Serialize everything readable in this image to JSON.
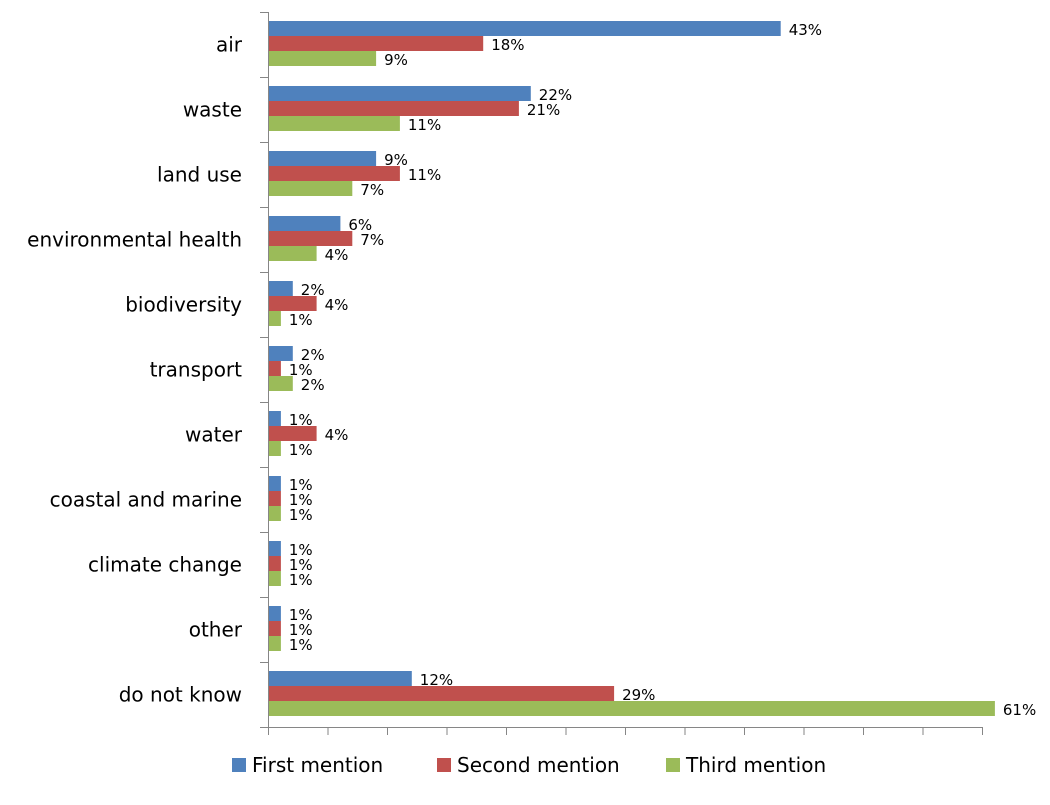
{
  "chart_data": {
    "type": "bar",
    "orientation": "horizontal",
    "categories": [
      "air",
      "waste",
      "land use",
      "environmental health",
      "biodiversity",
      "transport",
      "water",
      "coastal and marine",
      "climate change",
      "other",
      "do not know"
    ],
    "series": [
      {
        "name": "First mention",
        "color": "#4F81BD",
        "values": [
          43,
          22,
          9,
          6,
          2,
          2,
          1,
          1,
          1,
          1,
          12
        ]
      },
      {
        "name": "Second mention",
        "color": "#C0504D",
        "values": [
          18,
          21,
          11,
          7,
          4,
          1,
          4,
          1,
          1,
          1,
          29
        ]
      },
      {
        "name": "Third mention",
        "color": "#9BBB59",
        "values": [
          9,
          11,
          7,
          4,
          1,
          2,
          1,
          1,
          1,
          1,
          61
        ]
      }
    ],
    "value_suffix": "%",
    "xlim": [
      0,
      65
    ],
    "grid": false,
    "legend_position": "bottom"
  }
}
